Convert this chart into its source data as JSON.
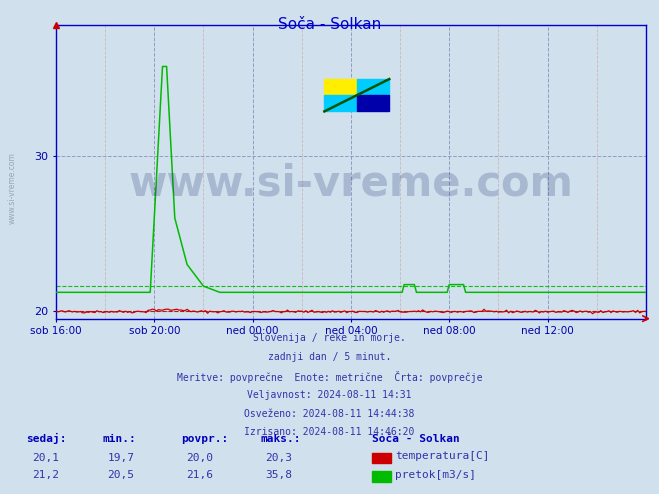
{
  "title": "Soča - Solkan",
  "title_color": "#0000cc",
  "bg_color": "#d0e0ec",
  "ylim": [
    19.5,
    38.5
  ],
  "xlim": [
    0,
    288
  ],
  "yticks": [
    20,
    30
  ],
  "xtick_labels": [
    "sob 16:00",
    "sob 20:00",
    "ned 00:00",
    "ned 04:00",
    "ned 08:00",
    "ned 12:00"
  ],
  "xtick_positions": [
    0,
    48,
    96,
    144,
    192,
    240
  ],
  "temp_color": "#cc0000",
  "flow_color": "#00bb00",
  "temp_avg_line": 20.0,
  "flow_avg_line": 21.6,
  "footer_lines": [
    "Slovenija / reke in morje.",
    "zadnji dan / 5 minut.",
    "Meritve: povprečne  Enote: metrične  Črta: povprečje",
    "Veljavnost: 2024-08-11 14:31",
    "Osveženo: 2024-08-11 14:44:38",
    "Izrisano: 2024-08-11 14:46:20"
  ],
  "legend_title": "Soča - Solkan",
  "legend_entries": [
    "temperatura[C]",
    "pretok[m3/s]"
  ],
  "legend_colors": [
    "#cc0000",
    "#00bb00"
  ],
  "table_headers": [
    "sedaj:",
    "min.:",
    "povpr.:",
    "maks.:"
  ],
  "table_row1": [
    "20,1",
    "19,7",
    "20,0",
    "20,3"
  ],
  "table_row2": [
    "21,2",
    "20,5",
    "21,6",
    "35,8"
  ],
  "n_points": 289,
  "spine_color": "#0000cc",
  "watermark_text": "www.si-vreme.com",
  "watermark_color": "#1a2a6e",
  "sidebar_text": "www.si-vreme.com",
  "sidebar_color": "#8899aa"
}
